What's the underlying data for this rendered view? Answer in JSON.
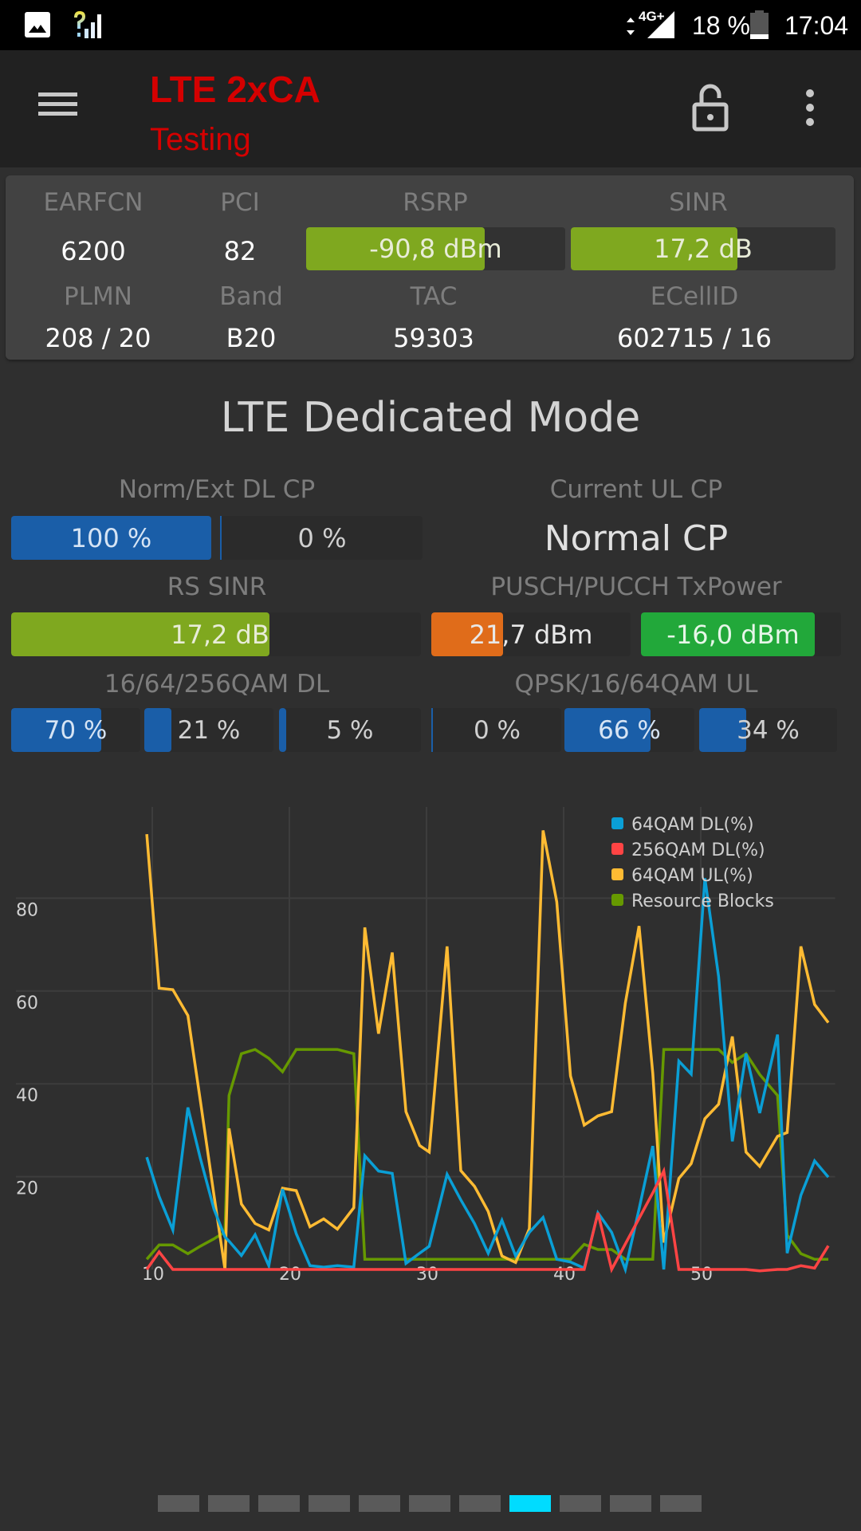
{
  "status_bar": {
    "left_icons": [
      "image-icon",
      "signal-unknown-icon"
    ],
    "network": "4G+",
    "battery": "18 %",
    "battery_level": 0.18,
    "time": "17:04"
  },
  "app_bar": {
    "title": "LTE 2xCA",
    "subtitle": "Testing",
    "menu_icon": "hamburger-menu-icon",
    "lock_icon": "lock-open-icon",
    "overflow_icon": "more-vert-icon",
    "title_color": "#d50000"
  },
  "cell_info": {
    "earfcn_label": "EARFCN",
    "earfcn": "6200",
    "pci_label": "PCI",
    "pci": "82",
    "rsrp_label": "RSRP",
    "rsrp": "-90,8 dBm",
    "rsrp_fill": 0.69,
    "sinr_label": "SINR",
    "sinr": "17,2 dB",
    "sinr_fill": 0.63,
    "plmn_label": "PLMN",
    "plmn": "208 / 20",
    "band_label": "Band",
    "band": "B20",
    "tac_label": "TAC",
    "tac": "59303",
    "ecellid_label": "ECellID",
    "ecellid": "602715 / 16"
  },
  "mode": {
    "title": "LTE Dedicated Mode",
    "dl_cp_label": "Norm/Ext DL CP",
    "dl_cp_normal": "100 %",
    "dl_cp_normal_fill": 1.0,
    "dl_cp_ext": "0 %",
    "dl_cp_ext_fill": 0.0,
    "ul_cp_label": "Current UL CP",
    "ul_cp_value": "Normal CP",
    "rs_sinr_label": "RS SINR",
    "rs_sinr": "17,2 dB",
    "rs_sinr_fill": 0.63,
    "txpower_label": "PUSCH/PUCCH TxPower",
    "pusch_power": "21,7 dBm",
    "pusch_fill": 0.36,
    "pucch_power": "-16,0 dBm",
    "pucch_fill": 0.87,
    "qam_dl_label": "16/64/256QAM DL",
    "qam_dl": [
      {
        "text": "70 %",
        "fill": 0.7
      },
      {
        "text": "21 %",
        "fill": 0.21
      },
      {
        "text": "5 %",
        "fill": 0.05
      }
    ],
    "qam_ul_label": "QPSK/16/64QAM UL",
    "qam_ul": [
      {
        "text": "0 %",
        "fill": 0.0
      },
      {
        "text": "66 %",
        "fill": 0.66
      },
      {
        "text": "34 %",
        "fill": 0.34
      }
    ],
    "colors": {
      "green": "#7fa81f",
      "blue": "#1a5ea8",
      "orange": "#e06c1a",
      "bright_green": "#22a83a",
      "track": "#2b2b2b"
    }
  },
  "chart_data": {
    "type": "line",
    "title": "",
    "xlabel": "",
    "ylabel": "",
    "xlim": [
      9.5,
      59.8
    ],
    "ylim": [
      0,
      100
    ],
    "xticks": [
      10,
      20,
      30,
      40,
      50
    ],
    "yticks": [
      20,
      40,
      60,
      80
    ],
    "grid": true,
    "legend_position": "top-right",
    "x": [
      9.6,
      10.5,
      11.5,
      12.6,
      13.5,
      14.5,
      15.3,
      15.6,
      16.5,
      17.5,
      18.5,
      19.5,
      20.5,
      21.5,
      22.5,
      23.5,
      24.7,
      25.5,
      26.5,
      27.5,
      28.5,
      29.5,
      30.2,
      31.5,
      32.5,
      33.5,
      34.5,
      35.5,
      36.5,
      37.5,
      38.5,
      39.5,
      40.5,
      41.5,
      42.5,
      43.5,
      44.5,
      45.5,
      46.5,
      47.3,
      48.4,
      49.3,
      50.3,
      51.3,
      52.3,
      53.3,
      54.3,
      55.6,
      56.3,
      57.3,
      58.3,
      59.3
    ],
    "series": [
      {
        "name": "64QAM DL(%)",
        "color": "#0a9fd6",
        "values": [
          24.2,
          15.7,
          8.5,
          34.9,
          24,
          13,
          7,
          6.1,
          3,
          7.5,
          0.8,
          17.3,
          7.7,
          0.8,
          0.5,
          0.8,
          0.5,
          24.5,
          21.2,
          20.7,
          1.3,
          3.5,
          5,
          20.5,
          15,
          9.9,
          3.5,
          10.6,
          2.9,
          8,
          11.2,
          2.2,
          1.6,
          0.3,
          12.2,
          8,
          0,
          13,
          26.6,
          0,
          44.9,
          42.1,
          84.3,
          63.1,
          27.6,
          46.5,
          33.7,
          50.6,
          3.5,
          16,
          23.4,
          19.9
        ]
      },
      {
        "name": "256QAM DL(%)",
        "color": "#ff4444",
        "values": [
          0,
          3.8,
          0,
          0,
          0,
          0,
          0,
          0,
          0,
          0,
          0,
          0,
          0,
          0,
          0,
          0,
          0,
          0,
          0,
          0,
          0,
          0,
          0,
          0,
          0,
          0,
          0,
          0,
          0,
          0,
          0,
          0,
          0,
          0,
          12.2,
          0,
          5.5,
          11,
          16.5,
          21.2,
          0,
          0,
          0,
          0,
          0,
          0,
          -0.3,
          0,
          0,
          0.8,
          0.3,
          5.1
        ]
      },
      {
        "name": "64QAM UL(%)",
        "color": "#ffbb33",
        "values": [
          93.8,
          60.6,
          60.3,
          54.7,
          36.5,
          16,
          0,
          30.4,
          14.1,
          9.9,
          8.5,
          17.5,
          17,
          9.2,
          10.9,
          8.7,
          13.3,
          73.7,
          50.8,
          68.3,
          34,
          26.7,
          25.3,
          69.6,
          21.3,
          17.9,
          12.5,
          2.9,
          1.5,
          8.8,
          94.6,
          79.2,
          41.7,
          31.1,
          33.1,
          34,
          57.4,
          74,
          42.3,
          5.8,
          19.6,
          22.8,
          32.5,
          35.6,
          50.2,
          25.3,
          22.2,
          28.7,
          29.5,
          69.6,
          57.1,
          53.2
        ]
      },
      {
        "name": "Resource Blocks",
        "color": "#669900",
        "values": [
          2.2,
          5.3,
          5.3,
          3.4,
          5,
          6.6,
          8.1,
          37.5,
          46.5,
          47.4,
          45.5,
          42.6,
          47.4,
          47.4,
          47.4,
          47.4,
          46.5,
          2.2,
          2.2,
          2.2,
          2.2,
          2.2,
          2.2,
          2.2,
          2.2,
          2.2,
          2.2,
          2.2,
          2.2,
          2.2,
          2.2,
          2.2,
          2.2,
          5.4,
          4.3,
          4.3,
          2.2,
          2.2,
          2.2,
          47.4,
          47.4,
          47.4,
          47.4,
          47.4,
          44.6,
          46.5,
          42,
          37.5,
          7.4,
          3.4,
          2.2,
          2.2
        ]
      }
    ]
  },
  "pager": {
    "count": 11,
    "active_index": 7,
    "active_color": "#00dcff"
  }
}
